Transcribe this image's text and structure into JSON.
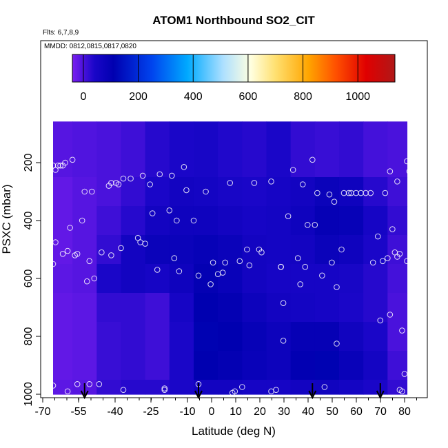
{
  "chart_data": {
    "type": "heatmap",
    "title": "ATOM1 Northbound SO2_CIT",
    "subtitle_flights": "Flts: 6,7,8,9",
    "subtitle_dates": "MMDD: 0812,0815,0817,0820",
    "xlabel": "Latitude (deg N)",
    "ylabel": "PSXC (mbar)",
    "xlim": [
      -70,
      85
    ],
    "ylim": [
      1000,
      100
    ],
    "x_ticks": [
      -70,
      -55,
      -40,
      -25,
      -10,
      0,
      10,
      20,
      30,
      40,
      50,
      60,
      70,
      80
    ],
    "x_tick_labels": [
      "-70",
      "-55",
      "-40",
      "-25",
      "-10",
      "0",
      "10",
      "20",
      "30",
      "40",
      "50",
      "60",
      "70",
      "80"
    ],
    "y_ticks": [
      200,
      400,
      600,
      800,
      1000
    ],
    "y_tick_labels": [
      "200",
      "400",
      "600",
      "800",
      "1000"
    ],
    "colorbar": {
      "range": [
        -40,
        1135
      ],
      "ticks": [
        0,
        200,
        400,
        600,
        800,
        1000
      ],
      "tick_labels": [
        "0",
        "200",
        "400",
        "600",
        "800",
        "1000"
      ],
      "colors": [
        "#7a1ef0",
        "#1a06c8",
        "#0000b0",
        "#0044ee",
        "#00aaff",
        "#aee0ff",
        "#ffffe0",
        "#ffe070",
        "#ffa500",
        "#ff5000",
        "#e00000",
        "#b01818"
      ],
      "stops": [
        -40,
        40,
        110,
        250,
        380,
        510,
        610,
        700,
        820,
        920,
        1030,
        1135
      ]
    },
    "grid_lat_edges": [
      -68,
      -60,
      -50,
      -40,
      -30,
      -20,
      -10,
      0,
      10,
      20,
      30,
      40,
      50,
      60,
      70,
      78
    ],
    "grid_p_edges": [
      165,
      250,
      350,
      450,
      550,
      650,
      750,
      850,
      950,
      1000
    ],
    "so2_grid": [
      [
        -10,
        -5,
        0,
        10,
        30,
        40,
        45,
        35,
        30,
        40,
        20,
        15,
        20,
        5,
        0
      ],
      [
        -20,
        -10,
        0,
        20,
        40,
        60,
        55,
        45,
        40,
        50,
        60,
        80,
        70,
        30,
        10
      ],
      [
        -20,
        -10,
        10,
        30,
        60,
        70,
        70,
        60,
        50,
        55,
        70,
        95,
        90,
        50,
        20
      ],
      [
        -20,
        -10,
        20,
        60,
        80,
        80,
        90,
        80,
        60,
        55,
        60,
        80,
        70,
        40,
        10
      ],
      [
        -15,
        -10,
        40,
        60,
        50,
        70,
        100,
        85,
        60,
        50,
        50,
        50,
        45,
        30,
        5
      ],
      [
        -20,
        -15,
        20,
        20,
        10,
        50,
        110,
        100,
        75,
        60,
        55,
        50,
        40,
        30,
        0
      ],
      [
        -20,
        -15,
        15,
        20,
        10,
        40,
        115,
        110,
        90,
        75,
        95,
        95,
        65,
        40,
        0
      ],
      [
        -20,
        -15,
        15,
        20,
        10,
        40,
        110,
        100,
        85,
        75,
        105,
        115,
        85,
        55,
        10
      ],
      [
        -15,
        -10,
        20,
        30,
        30,
        40,
        60,
        60,
        50,
        50,
        60,
        65,
        55,
        40,
        20
      ]
    ],
    "samples": [
      [
        -68,
        210
      ],
      [
        -67,
        225
      ],
      [
        -66,
        210
      ],
      [
        -65,
        210
      ],
      [
        -64,
        210
      ],
      [
        -63,
        200
      ],
      [
        -60,
        190
      ],
      [
        -68,
        970
      ],
      [
        -68,
        550
      ],
      [
        -67,
        475
      ],
      [
        -64,
        515
      ],
      [
        -62,
        505
      ],
      [
        -61,
        425
      ],
      [
        -59,
        520
      ],
      [
        -58,
        515
      ],
      [
        -62,
        990
      ],
      [
        -58,
        965
      ],
      [
        -56,
        400
      ],
      [
        -55,
        300
      ],
      [
        -54,
        610
      ],
      [
        -53,
        540
      ],
      [
        -53,
        965
      ],
      [
        -52,
        300
      ],
      [
        -51,
        600
      ],
      [
        -49,
        965
      ],
      [
        -48,
        510
      ],
      [
        -45,
        280
      ],
      [
        -44,
        270
      ],
      [
        -44,
        520
      ],
      [
        -42,
        270
      ],
      [
        -41,
        275
      ],
      [
        -40,
        495
      ],
      [
        -39,
        255
      ],
      [
        -39,
        985
      ],
      [
        -36,
        255
      ],
      [
        -33,
        460
      ],
      [
        -32,
        475
      ],
      [
        -31,
        245
      ],
      [
        -30,
        480
      ],
      [
        -28,
        275
      ],
      [
        -27,
        375
      ],
      [
        -25,
        570
      ],
      [
        -24,
        240
      ],
      [
        -22,
        985
      ],
      [
        -22,
        980
      ],
      [
        -20,
        365
      ],
      [
        -19,
        245
      ],
      [
        -18,
        530
      ],
      [
        -17,
        400
      ],
      [
        -16,
        575
      ],
      [
        -14,
        215
      ],
      [
        -13,
        295
      ],
      [
        -10,
        400
      ],
      [
        -8,
        590
      ],
      [
        -8,
        965
      ],
      [
        -5,
        300
      ],
      [
        -3,
        620
      ],
      [
        -2,
        545
      ],
      [
        0,
        585
      ],
      [
        2,
        580
      ],
      [
        3,
        545
      ],
      [
        5,
        270
      ],
      [
        6,
        995
      ],
      [
        7,
        990
      ],
      [
        9,
        540
      ],
      [
        10,
        975
      ],
      [
        12,
        500
      ],
      [
        13,
        555
      ],
      [
        15,
        270
      ],
      [
        17,
        500
      ],
      [
        18,
        510
      ],
      [
        22,
        990
      ],
      [
        22,
        265
      ],
      [
        24,
        985
      ],
      [
        26,
        560
      ],
      [
        26,
        560
      ],
      [
        27,
        815
      ],
      [
        27,
        685
      ],
      [
        29,
        385
      ],
      [
        31,
        225
      ],
      [
        33,
        530
      ],
      [
        34,
        620
      ],
      [
        35,
        275
      ],
      [
        36,
        560
      ],
      [
        37,
        415
      ],
      [
        39,
        190
      ],
      [
        40,
        415
      ],
      [
        41,
        305
      ],
      [
        43,
        590
      ],
      [
        44,
        975
      ],
      [
        46,
        310
      ],
      [
        47,
        545
      ],
      [
        48,
        335
      ],
      [
        49,
        630
      ],
      [
        49,
        825
      ],
      [
        51,
        500
      ],
      [
        52,
        305
      ],
      [
        54,
        305
      ],
      [
        55,
        305
      ],
      [
        57,
        305
      ],
      [
        59,
        305
      ],
      [
        61,
        305
      ],
      [
        63,
        305
      ],
      [
        64,
        545
      ],
      [
        66,
        455
      ],
      [
        67,
        745
      ],
      [
        68,
        540
      ],
      [
        69,
        305
      ],
      [
        70,
        530
      ],
      [
        71,
        230
      ],
      [
        71,
        725
      ],
      [
        72,
        430
      ],
      [
        73,
        510
      ],
      [
        74,
        265
      ],
      [
        74,
        525
      ],
      [
        75,
        515
      ],
      [
        75,
        985
      ],
      [
        76,
        990
      ],
      [
        76,
        780
      ],
      [
        77,
        930
      ],
      [
        78,
        195
      ],
      [
        78,
        540
      ],
      [
        79,
        230
      ],
      [
        80,
        245
      ],
      [
        81,
        455
      ],
      [
        82,
        460
      ],
      [
        82,
        910
      ]
    ],
    "arrows_lat": [
      -55,
      -8,
      39,
      67
    ]
  }
}
